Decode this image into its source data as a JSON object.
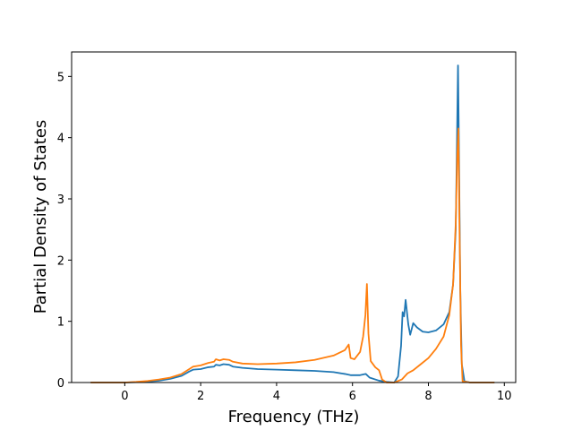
{
  "chart_data": {
    "type": "line",
    "title": "",
    "xlabel": "Frequency (THz)",
    "ylabel": "Partial Density of States",
    "xlim": [
      -1.4,
      10.3
    ],
    "ylim": [
      0,
      5.4
    ],
    "xticks": [
      0,
      2,
      4,
      6,
      8,
      10
    ],
    "yticks": [
      0,
      1,
      2,
      3,
      4,
      5
    ],
    "grid": false,
    "legend": "none",
    "series": [
      {
        "color": "#1f77b4",
        "points": [
          [
            -0.9,
            0
          ],
          [
            0.0,
            0
          ],
          [
            0.3,
            0.005
          ],
          [
            0.6,
            0.015
          ],
          [
            0.9,
            0.03
          ],
          [
            1.2,
            0.06
          ],
          [
            1.5,
            0.11
          ],
          [
            1.7,
            0.18
          ],
          [
            1.8,
            0.21
          ],
          [
            2.0,
            0.22
          ],
          [
            2.2,
            0.25
          ],
          [
            2.35,
            0.26
          ],
          [
            2.4,
            0.29
          ],
          [
            2.5,
            0.28
          ],
          [
            2.6,
            0.3
          ],
          [
            2.75,
            0.29
          ],
          [
            2.85,
            0.26
          ],
          [
            3.1,
            0.24
          ],
          [
            3.5,
            0.22
          ],
          [
            4.0,
            0.21
          ],
          [
            4.5,
            0.2
          ],
          [
            5.0,
            0.19
          ],
          [
            5.5,
            0.17
          ],
          [
            5.8,
            0.14
          ],
          [
            5.95,
            0.12
          ],
          [
            6.2,
            0.12
          ],
          [
            6.35,
            0.14
          ],
          [
            6.45,
            0.08
          ],
          [
            6.7,
            0.03
          ],
          [
            6.9,
            0.01
          ],
          [
            7.1,
            0.0
          ],
          [
            7.2,
            0.1
          ],
          [
            7.28,
            0.6
          ],
          [
            7.32,
            1.15
          ],
          [
            7.36,
            1.08
          ],
          [
            7.4,
            1.35
          ],
          [
            7.47,
            0.95
          ],
          [
            7.52,
            0.78
          ],
          [
            7.6,
            0.97
          ],
          [
            7.7,
            0.9
          ],
          [
            7.85,
            0.83
          ],
          [
            8.0,
            0.82
          ],
          [
            8.2,
            0.85
          ],
          [
            8.4,
            0.95
          ],
          [
            8.55,
            1.15
          ],
          [
            8.65,
            1.6
          ],
          [
            8.72,
            2.5
          ],
          [
            8.75,
            3.8
          ],
          [
            8.78,
            5.18
          ],
          [
            8.8,
            4.1
          ],
          [
            8.84,
            1.5
          ],
          [
            8.88,
            0.3
          ],
          [
            8.95,
            0.02
          ],
          [
            9.1,
            0
          ],
          [
            9.74,
            0
          ]
        ]
      },
      {
        "color": "#ff7f0e",
        "points": [
          [
            -0.9,
            0
          ],
          [
            0.0,
            0
          ],
          [
            0.3,
            0.01
          ],
          [
            0.6,
            0.025
          ],
          [
            0.9,
            0.05
          ],
          [
            1.2,
            0.08
          ],
          [
            1.5,
            0.14
          ],
          [
            1.7,
            0.22
          ],
          [
            1.8,
            0.26
          ],
          [
            2.0,
            0.28
          ],
          [
            2.2,
            0.32
          ],
          [
            2.35,
            0.34
          ],
          [
            2.4,
            0.38
          ],
          [
            2.5,
            0.36
          ],
          [
            2.6,
            0.38
          ],
          [
            2.75,
            0.37
          ],
          [
            2.85,
            0.34
          ],
          [
            3.1,
            0.31
          ],
          [
            3.5,
            0.3
          ],
          [
            4.0,
            0.31
          ],
          [
            4.5,
            0.33
          ],
          [
            5.0,
            0.37
          ],
          [
            5.5,
            0.44
          ],
          [
            5.8,
            0.53
          ],
          [
            5.9,
            0.62
          ],
          [
            5.95,
            0.4
          ],
          [
            6.05,
            0.38
          ],
          [
            6.2,
            0.5
          ],
          [
            6.28,
            0.75
          ],
          [
            6.34,
            1.1
          ],
          [
            6.38,
            1.61
          ],
          [
            6.42,
            0.8
          ],
          [
            6.48,
            0.35
          ],
          [
            6.6,
            0.25
          ],
          [
            6.7,
            0.2
          ],
          [
            6.78,
            0.05
          ],
          [
            6.9,
            0.0
          ],
          [
            7.1,
            0.0
          ],
          [
            7.3,
            0.05
          ],
          [
            7.45,
            0.15
          ],
          [
            7.6,
            0.2
          ],
          [
            7.8,
            0.3
          ],
          [
            8.0,
            0.4
          ],
          [
            8.2,
            0.55
          ],
          [
            8.4,
            0.75
          ],
          [
            8.55,
            1.1
          ],
          [
            8.65,
            1.6
          ],
          [
            8.72,
            2.6
          ],
          [
            8.76,
            3.7
          ],
          [
            8.79,
            4.15
          ],
          [
            8.82,
            2.5
          ],
          [
            8.86,
            0.6
          ],
          [
            8.9,
            0.02
          ],
          [
            9.1,
            0
          ],
          [
            9.74,
            0
          ]
        ]
      }
    ]
  }
}
